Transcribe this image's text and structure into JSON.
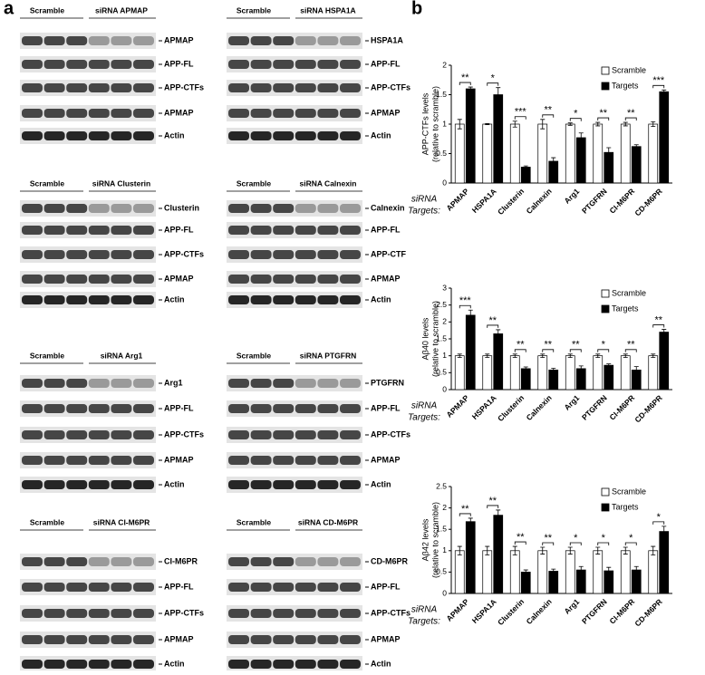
{
  "panel_a": {
    "label": "a",
    "blots": [
      {
        "headers": [
          "Scramble",
          "siRNA APMAP"
        ],
        "rows": [
          "APMAP",
          "APP-FL",
          "APP-CTFs",
          "APMAP",
          "Actin"
        ]
      },
      {
        "headers": [
          "Scramble",
          "siRNA HSPA1A"
        ],
        "rows": [
          "HSPA1A",
          "APP-FL",
          "APP-CTFs",
          "APMAP",
          "Actin"
        ]
      },
      {
        "headers": [
          "Scramble",
          "siRNA Clusterin"
        ],
        "rows": [
          "Clusterin",
          "APP-FL",
          "APP-CTFs",
          "APMAP",
          "Actin"
        ]
      },
      {
        "headers": [
          "Scramble",
          "siRNA Calnexin"
        ],
        "rows": [
          "Calnexin",
          "APP-FL",
          "APP-CTF",
          "APMAP",
          "Actin"
        ]
      },
      {
        "headers": [
          "Scramble",
          "siRNA Arg1"
        ],
        "rows": [
          "Arg1",
          "APP-FL",
          "APP-CTFs",
          "APMAP",
          "Actin"
        ]
      },
      {
        "headers": [
          "Scramble",
          "siRNA PTGFRN"
        ],
        "rows": [
          "PTGFRN",
          "APP-FL",
          "APP-CTFs",
          "APMAP",
          "Actin"
        ]
      },
      {
        "headers": [
          "Scramble",
          "siRNA CI-M6PR"
        ],
        "rows": [
          "CI-M6PR",
          "APP-FL",
          "APP-CTFs",
          "APMAP",
          "Actin"
        ]
      },
      {
        "headers": [
          "Scramble",
          "siRNA CD-M6PR"
        ],
        "rows": [
          "CD-M6PR",
          "APP-FL",
          "APP-CTFs",
          "APMAP",
          "Actin"
        ]
      }
    ]
  },
  "panel_b": {
    "label": "b"
  },
  "chart_data": [
    {
      "type": "bar",
      "ylabel": [
        "APP-CTFs levels",
        "(relative to scramble)"
      ],
      "row_label": [
        "siRNA",
        "Targets:"
      ],
      "categories": [
        "APMAP",
        "HSPA1A",
        "Clusterin",
        "Calnexin",
        "Arg1",
        "PTGFRN",
        "CI-M6PR",
        "CD-M6PR"
      ],
      "series": [
        {
          "name": "Scramble",
          "color": "#ffffff",
          "values": [
            1,
            1,
            1,
            1,
            1,
            1,
            1,
            1
          ],
          "errors": [
            0.08,
            0.01,
            0.05,
            0.08,
            0.02,
            0.03,
            0.03,
            0.04
          ]
        },
        {
          "name": "Targets",
          "color": "#000000",
          "values": [
            1.6,
            1.5,
            0.27,
            0.37,
            0.77,
            0.52,
            0.62,
            1.55
          ],
          "errors": [
            0.03,
            0.12,
            0.02,
            0.06,
            0.08,
            0.08,
            0.03,
            0.03
          ]
        }
      ],
      "significance": [
        "**",
        "*",
        "***",
        "**",
        "*",
        "**",
        "**",
        "***"
      ],
      "ylim": [
        0,
        2
      ],
      "yticks": [
        0,
        0.5,
        1,
        1.5,
        2
      ],
      "legend": "top-right"
    },
    {
      "type": "bar",
      "ylabel": [
        "Aβ40 levels",
        "(relative to scramble)"
      ],
      "row_label": [
        "siRNA",
        "Targets:"
      ],
      "categories": [
        "APMAP",
        "HSPA1A",
        "Clusterin",
        "Calnexin",
        "Arg1",
        "PTGFRN",
        "CI-M6PR",
        "CD-M6PR"
      ],
      "series": [
        {
          "name": "Scramble",
          "color": "#ffffff",
          "values": [
            1,
            1,
            1,
            1,
            1,
            1,
            1,
            1
          ],
          "errors": [
            0.05,
            0.05,
            0.05,
            0.05,
            0.05,
            0.05,
            0.05,
            0.05
          ]
        },
        {
          "name": "Targets",
          "color": "#000000",
          "values": [
            2.2,
            1.65,
            0.62,
            0.58,
            0.62,
            0.72,
            0.58,
            1.7
          ],
          "errors": [
            0.15,
            0.12,
            0.05,
            0.05,
            0.08,
            0.04,
            0.1,
            0.08
          ]
        }
      ],
      "significance": [
        "***",
        "**",
        "**",
        "**",
        "**",
        "*",
        "**",
        "**"
      ],
      "ylim": [
        0,
        3
      ],
      "yticks": [
        0,
        0.5,
        1,
        1.5,
        2,
        2.5,
        3
      ],
      "legend": "top-right"
    },
    {
      "type": "bar",
      "ylabel": [
        "Aβ42 levels",
        "(relative to scramble)"
      ],
      "row_label": [
        "siRNA",
        "Targets:"
      ],
      "categories": [
        "APMAP",
        "HSPA1A",
        "Clusterin",
        "Calnexin",
        "Arg1",
        "PTGFRN",
        "CI-M6PR",
        "CD-M6PR"
      ],
      "series": [
        {
          "name": "Scramble",
          "color": "#ffffff",
          "values": [
            1,
            1,
            1,
            1,
            1,
            1,
            1,
            1
          ],
          "errors": [
            0.1,
            0.1,
            0.1,
            0.08,
            0.08,
            0.08,
            0.08,
            0.1
          ]
        },
        {
          "name": "Targets",
          "color": "#000000",
          "values": [
            1.68,
            1.83,
            0.5,
            0.52,
            0.55,
            0.53,
            0.55,
            1.45
          ],
          "errors": [
            0.08,
            0.12,
            0.05,
            0.05,
            0.08,
            0.08,
            0.08,
            0.12
          ]
        }
      ],
      "significance": [
        "**",
        "**",
        "**",
        "**",
        "*",
        "*",
        "*",
        "*"
      ],
      "ylim": [
        0,
        2.5
      ],
      "yticks": [
        0,
        0.5,
        1,
        1.5,
        2,
        2.5
      ],
      "legend": "top-right"
    }
  ]
}
